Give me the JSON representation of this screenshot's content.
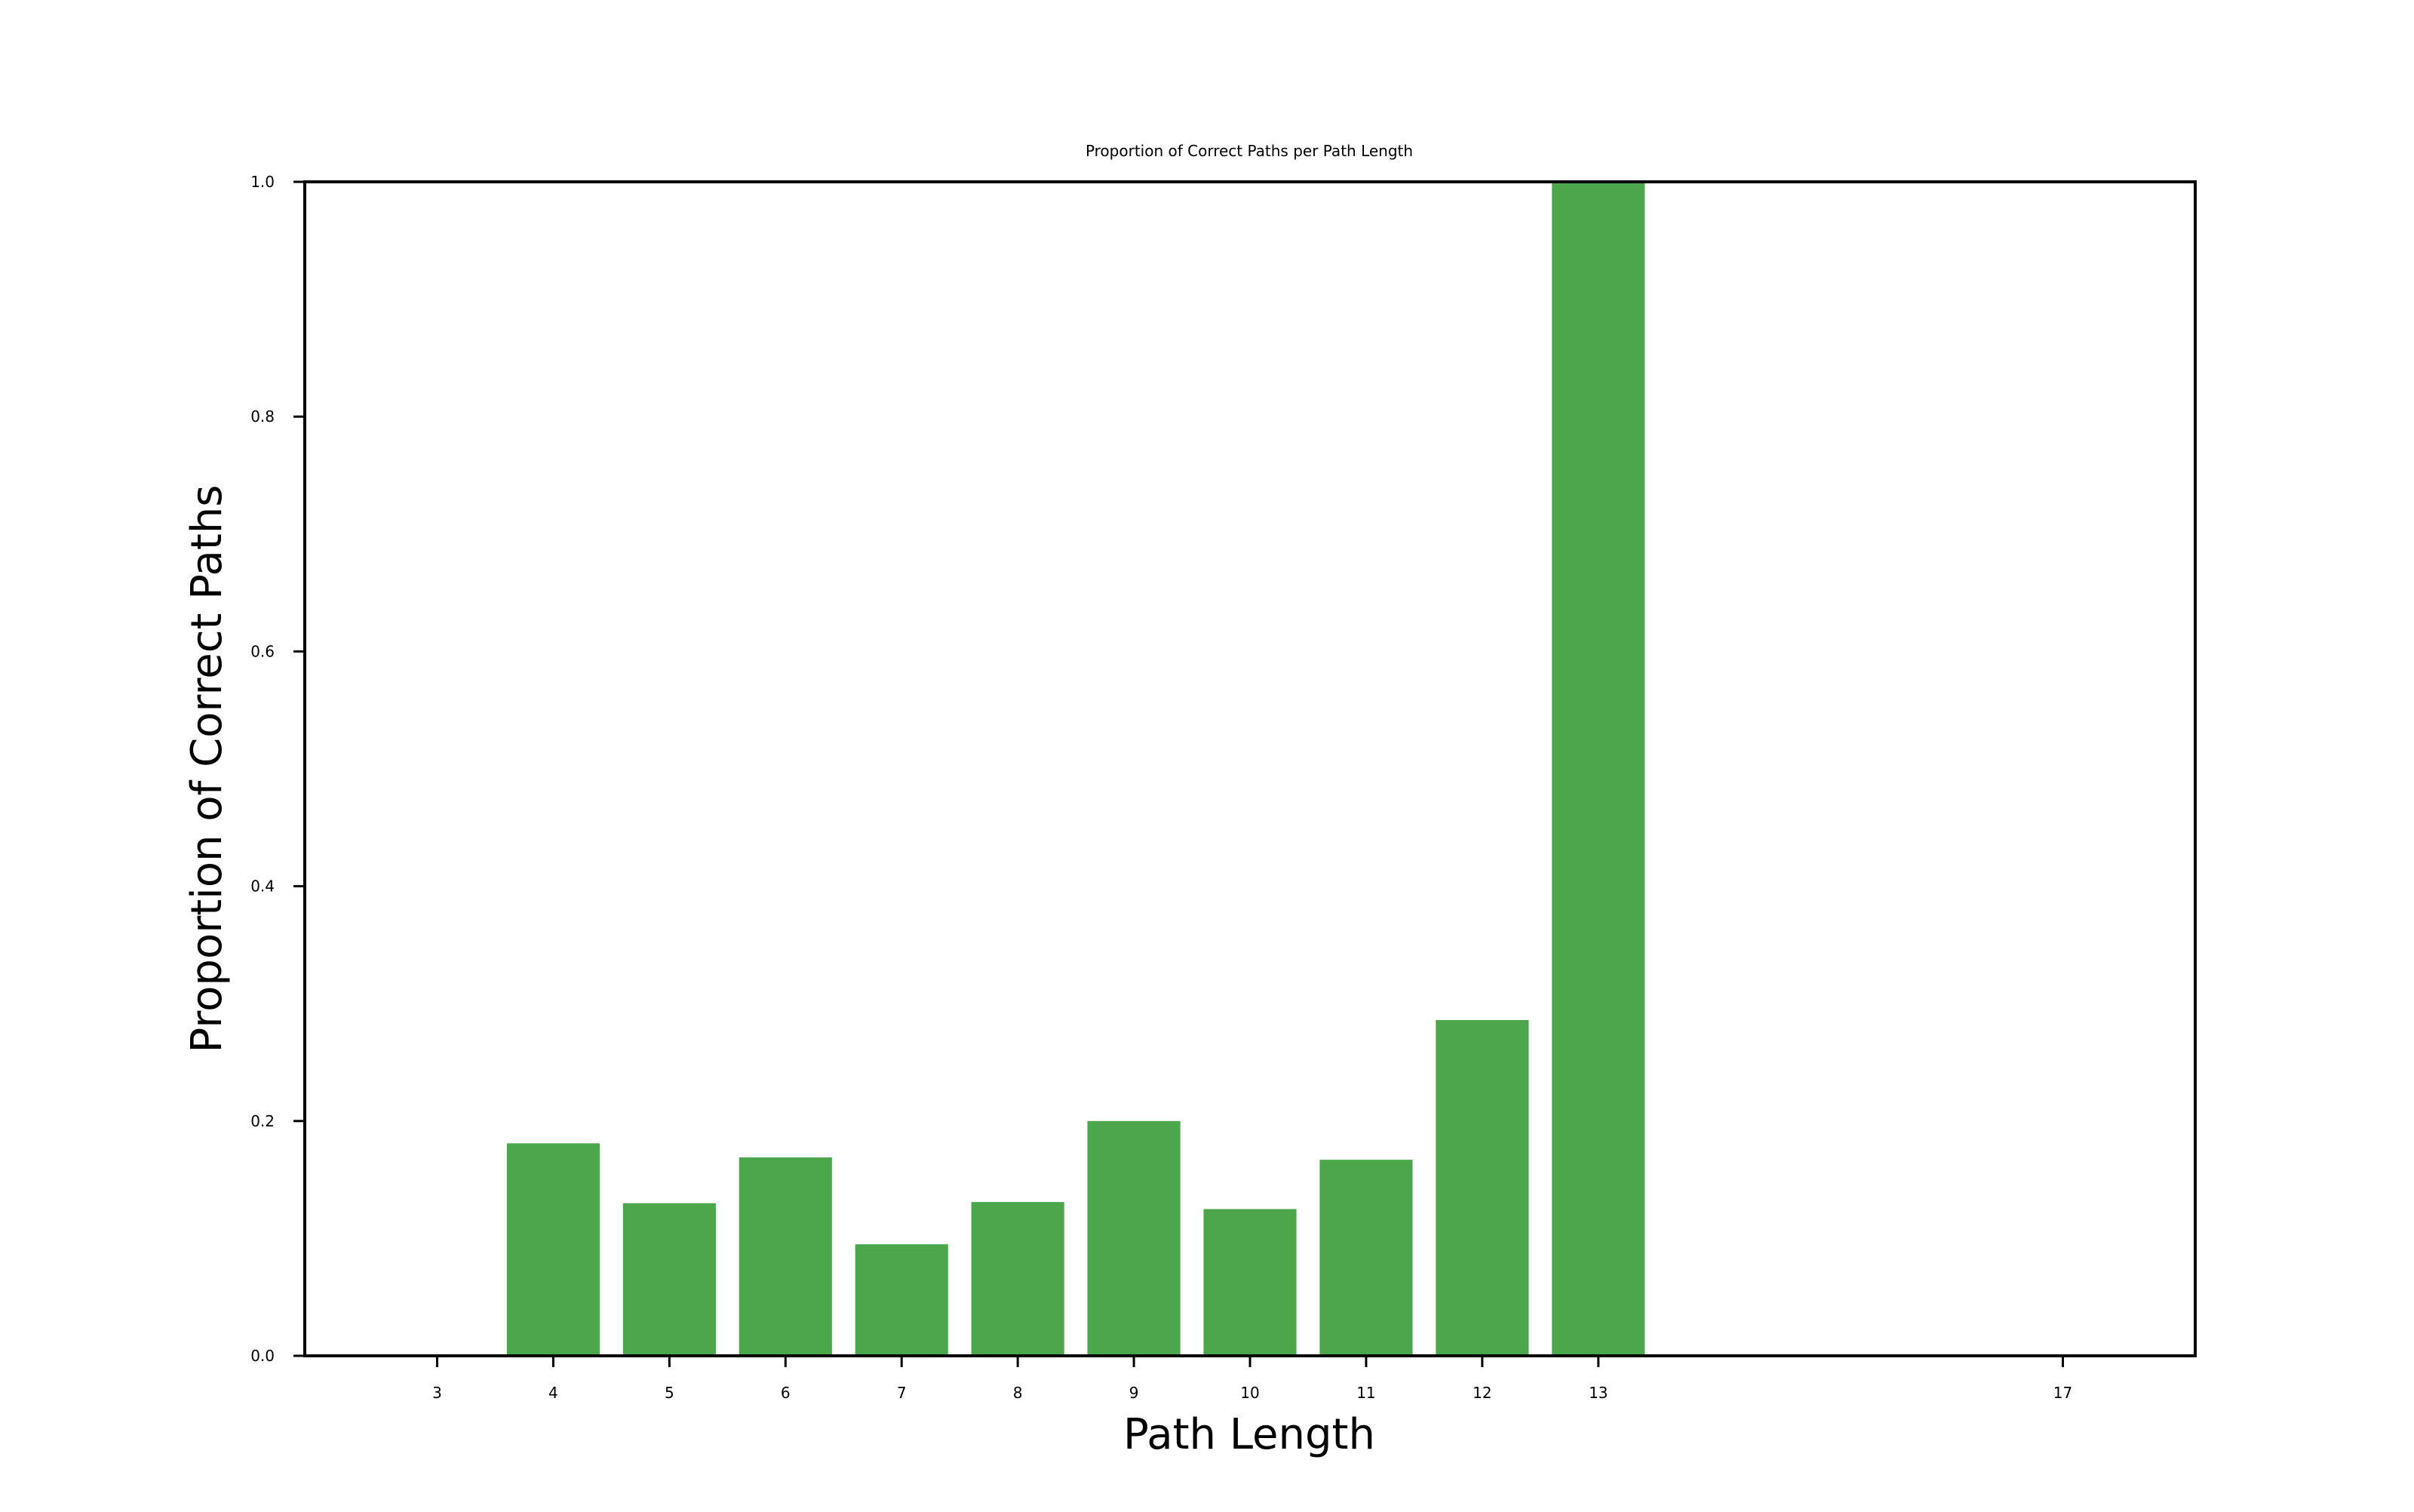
{
  "chart_data": {
    "type": "bar",
    "title": "Proportion of Correct Paths per Path Length",
    "xlabel": "Path Length",
    "ylabel": "Proportion of Correct Paths",
    "x": [
      3,
      4,
      5,
      6,
      7,
      8,
      9,
      10,
      11,
      12,
      13,
      17
    ],
    "values": [
      0.0,
      0.181,
      0.13,
      0.169,
      0.095,
      0.131,
      0.2,
      0.125,
      0.167,
      0.286,
      1.0,
      0.0
    ],
    "xticks": [
      "3",
      "4",
      "5",
      "6",
      "7",
      "8",
      "9",
      "10",
      "11",
      "12",
      "13",
      "17"
    ],
    "yticks": [
      "0.0",
      "0.2",
      "0.4",
      "0.6",
      "0.8",
      "1.0"
    ],
    "ytick_values": [
      0.0,
      0.2,
      0.4,
      0.6,
      0.8,
      1.0
    ],
    "xlim": [
      1.86,
      18.14
    ],
    "ylim": [
      0.0,
      1.0
    ],
    "bar_width": 0.8,
    "bar_color": "#4ca64c",
    "grid": false,
    "legend": "none"
  }
}
